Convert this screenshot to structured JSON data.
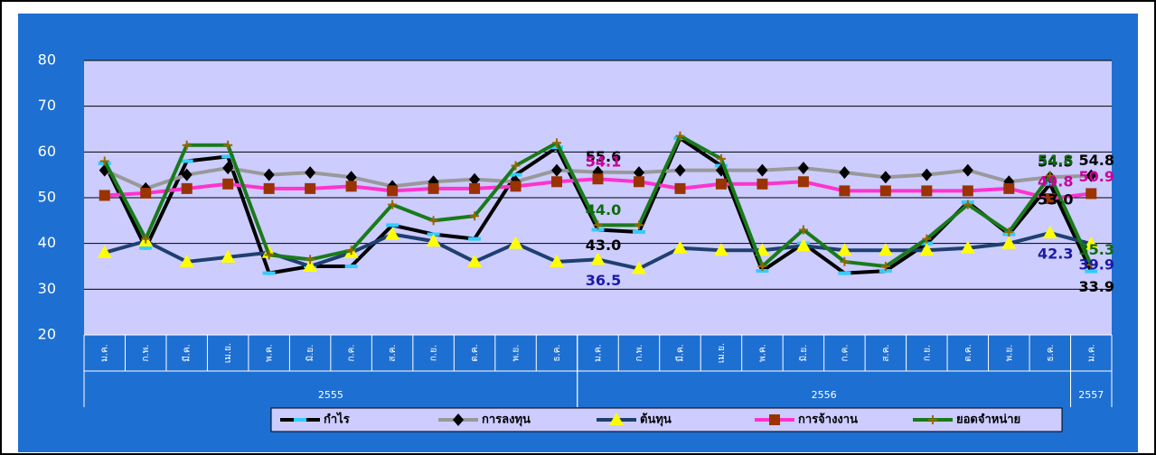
{
  "chart_data": {
    "type": "line",
    "categories": [
      "ม.ค.",
      "ก.พ.",
      "มี.ค.",
      "เม.ย.",
      "พ.ค.",
      "มิ.ย.",
      "ก.ค.",
      "ส.ค.",
      "ก.ย.",
      "ต.ค.",
      "พ.ย.",
      "ธ.ค.",
      "ม.ค.",
      "ก.พ.",
      "มี.ค.",
      "เม.ย.",
      "พ.ค.",
      "มิ.ย.",
      "ก.ค.",
      "ส.ค.",
      "ก.ย.",
      "ต.ค.",
      "พ.ย.",
      "ธ.ค.",
      "ม.ค."
    ],
    "category_groups": [
      "2555",
      "2556",
      "2557"
    ],
    "ylim": [
      20,
      80
    ],
    "yticks": [
      20,
      30,
      40,
      50,
      60,
      70,
      80
    ],
    "grid": true,
    "legend": "bottom",
    "series": [
      {
        "name": "กำไร",
        "color": "#000000",
        "marker": "dash",
        "marker_color": "#33ccff",
        "label_color": "#000000",
        "values": [
          57.5,
          39,
          58,
          59,
          33.5,
          35,
          35,
          44,
          42,
          41,
          55,
          61,
          43.0,
          42.5,
          63,
          57,
          34,
          40,
          33.5,
          34,
          40,
          49,
          42,
          53.0,
          33.9
        ],
        "value_labels": [
          null,
          null,
          null,
          null,
          null,
          null,
          null,
          null,
          null,
          null,
          null,
          null,
          "43.0",
          null,
          null,
          null,
          null,
          null,
          null,
          null,
          null,
          null,
          null,
          "53.0",
          "33.9"
        ]
      },
      {
        "name": "การลงทุน",
        "color": "#999999",
        "marker": "diamond",
        "marker_color": "#000000",
        "label_color": "#000000",
        "values": [
          56,
          52,
          55,
          56.5,
          55,
          55.5,
          54.5,
          52.5,
          53.5,
          54,
          53.5,
          56,
          55.6,
          55.5,
          56,
          56,
          56,
          56.5,
          55.5,
          54.5,
          55,
          56,
          53.5,
          54.5,
          54.8
        ],
        "value_labels": [
          null,
          null,
          null,
          null,
          null,
          null,
          null,
          null,
          null,
          null,
          null,
          null,
          "55.6",
          null,
          null,
          null,
          null,
          null,
          null,
          null,
          null,
          null,
          null,
          "54.5",
          "54.8"
        ]
      },
      {
        "name": "ต้นทุน",
        "color": "#1f3f6f",
        "marker": "triangle",
        "marker_color": "#ffff00",
        "label_color": "#1a1aa8",
        "values": [
          38,
          40.5,
          36,
          37,
          38,
          35,
          38,
          42,
          40.5,
          36,
          40,
          36,
          36.5,
          34.5,
          39,
          38.5,
          38.5,
          39.5,
          38.5,
          38.5,
          38.5,
          39,
          40,
          42.3,
          39.9
        ],
        "value_labels": [
          null,
          null,
          null,
          null,
          null,
          null,
          null,
          null,
          null,
          null,
          null,
          null,
          "36.5",
          null,
          null,
          null,
          null,
          null,
          null,
          null,
          null,
          null,
          null,
          "42.3",
          "39.9"
        ]
      },
      {
        "name": "การจ้างงาน",
        "color": "#ff33cc",
        "marker": "square",
        "marker_color": "#993300",
        "label_color": "#cc0099",
        "values": [
          50.5,
          51,
          52,
          53,
          52,
          52,
          52.5,
          51.5,
          52,
          52,
          52.5,
          53.5,
          54.1,
          53.5,
          52,
          53,
          53,
          53.5,
          51.5,
          51.5,
          51.5,
          51.5,
          52,
          49.8,
          50.9
        ],
        "value_labels": [
          null,
          null,
          null,
          null,
          null,
          null,
          null,
          null,
          null,
          null,
          null,
          null,
          "54.1",
          null,
          null,
          null,
          null,
          null,
          null,
          null,
          null,
          null,
          null,
          "49.8",
          "50.9"
        ]
      },
      {
        "name": "ยอดจำหน่าย",
        "color": "#1a7a1a",
        "marker": "plus",
        "marker_color": "#996600",
        "label_color": "#0f6a0f",
        "values": [
          58,
          41,
          61.5,
          61.5,
          37.5,
          36.5,
          38.5,
          48.5,
          45,
          46,
          57,
          62,
          44.0,
          44,
          63.5,
          58.5,
          35,
          43,
          36,
          35,
          41,
          48.5,
          42.5,
          54.8,
          35.3
        ],
        "value_labels": [
          null,
          null,
          null,
          null,
          null,
          null,
          null,
          null,
          null,
          null,
          null,
          null,
          "44.0",
          null,
          null,
          null,
          null,
          null,
          null,
          null,
          null,
          null,
          null,
          "54.8",
          "35.3"
        ]
      }
    ]
  }
}
